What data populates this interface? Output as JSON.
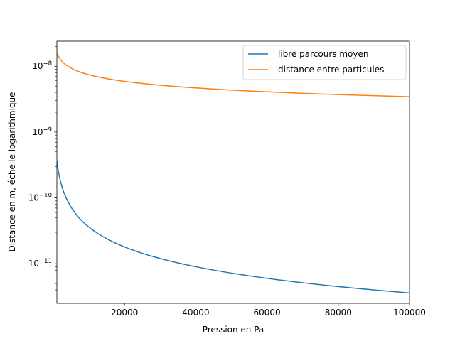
{
  "chart_data": {
    "type": "line",
    "title": "",
    "xlabel": "Pression en Pa",
    "ylabel": "Distance en m, échelle logarithmique",
    "xscale": "linear",
    "yscale": "log",
    "xlim": [
      1000,
      100000
    ],
    "ylim": [
      2.5e-12,
      2.4e-08
    ],
    "grid": false,
    "legend_position": "top-right",
    "x_ticks": [
      20000,
      40000,
      60000,
      80000,
      100000
    ],
    "x_tick_labels": [
      "20000",
      "40000",
      "60000",
      "80000",
      "100000"
    ],
    "y_ticks": [
      {
        "value": 1e-11,
        "mantissa": "10",
        "exponent": "−11"
      },
      {
        "value": 1e-10,
        "mantissa": "10",
        "exponent": "−10"
      },
      {
        "value": 1e-09,
        "mantissa": "10",
        "exponent": "−9"
      },
      {
        "value": 1e-08,
        "mantissa": "10",
        "exponent": "−8"
      }
    ],
    "series": [
      {
        "name": "libre parcours moyen",
        "color": "#1f77b4",
        "x": [
          1000,
          2000,
          3000,
          5000,
          7500,
          10000,
          15000,
          20000,
          30000,
          40000,
          50000,
          60000,
          70000,
          80000,
          90000,
          100000
        ],
        "y": [
          3.6e-10,
          1.8e-10,
          1.2e-10,
          7.2e-11,
          4.8e-11,
          3.6e-11,
          2.4e-11,
          1.8e-11,
          1.2e-11,
          9e-12,
          7.2e-12,
          6e-12,
          5.14e-12,
          4.5e-12,
          4e-12,
          3.6e-12
        ]
      },
      {
        "name": "distance entre particules",
        "color": "#ff7f0e",
        "x": [
          1000,
          2000,
          3000,
          5000,
          7500,
          10000,
          15000,
          20000,
          30000,
          40000,
          50000,
          60000,
          70000,
          80000,
          90000,
          100000
        ],
        "y": [
          1.6e-08,
          1.27e-08,
          1.11e-08,
          9.36e-09,
          8.17e-09,
          7.43e-09,
          6.49e-09,
          5.89e-09,
          5.15e-09,
          4.68e-09,
          4.34e-09,
          4.09e-09,
          3.88e-09,
          3.71e-09,
          3.57e-09,
          3.45e-09
        ]
      }
    ]
  }
}
